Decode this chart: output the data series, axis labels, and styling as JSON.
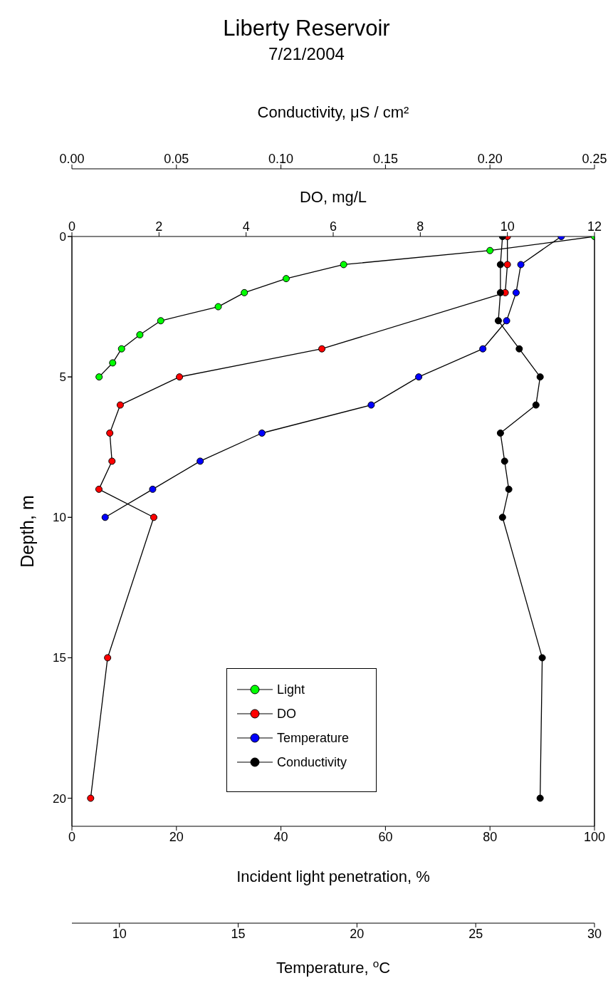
{
  "chart_data": [
    {
      "type": "line",
      "title": "Liberty Reservoir",
      "subtitle": "7/21/2004",
      "xlabel": "Incident light penetration, %",
      "x2label": "DO, mg/L",
      "ylabel": "Depth, m",
      "xlim": [
        0,
        100
      ],
      "xticks": [
        0,
        20,
        40,
        60,
        80,
        100
      ],
      "x2lim": [
        0,
        12
      ],
      "x2ticks": [
        0,
        2,
        4,
        6,
        8,
        10,
        12
      ],
      "ylim": [
        21,
        0
      ],
      "yticks": [
        0,
        5,
        10,
        15,
        20
      ],
      "marker": "circle",
      "line_style": "solid",
      "legend": "bottom",
      "series": [
        {
          "name": "Light",
          "color": "#00ff00",
          "x": [
            100,
            80,
            52,
            41,
            33,
            28,
            17,
            13,
            9.5,
            7.8,
            5.2
          ],
          "values": [
            0,
            0.5,
            1,
            1.5,
            2,
            2.5,
            3,
            3.5,
            4,
            4.5,
            5
          ]
        },
        {
          "name": "DO",
          "color": "#ff0000",
          "axis": "x2",
          "x": [
            10.0,
            10.0,
            9.95,
            5.74,
            2.47,
            1.11,
            0.87,
            0.92,
            0.62,
            1.88,
            0.82,
            0.43
          ],
          "values": [
            0,
            1,
            2,
            4,
            5,
            6,
            7,
            8,
            9,
            10,
            15,
            20
          ]
        }
      ]
    },
    {
      "type": "line",
      "xlabel": "Temperature, $^{o}$C",
      "x2label": "Conductivity, μS / cm²",
      "xlim": [
        8,
        30
      ],
      "xticks": [
        10,
        15,
        20,
        25,
        30
      ],
      "x2lim": [
        0,
        0.25
      ],
      "x2ticks": [
        {
          "value": 0,
          "label": "0.00"
        },
        {
          "value": 0.05,
          "label": "0.05"
        },
        {
          "value": 0.1,
          "label": "0.10"
        },
        {
          "value": 0.15,
          "label": "0.15"
        },
        {
          "value": 0.2,
          "label": "0.20"
        },
        {
          "value": 0.25,
          "label": "0.25"
        }
      ],
      "ylim": [
        21,
        0
      ],
      "yticks": [
        0,
        5,
        10,
        15,
        20
      ],
      "tick_labels": "x",
      "marker": "circle",
      "line_style": "solid",
      "legend": "bottom",
      "series": [
        {
          "name": "Temperature",
          "color": "#0000ff",
          "x": [
            28.6,
            26.9,
            26.7,
            26.3,
            25.3,
            22.6,
            20.6,
            16.0,
            13.4,
            11.4,
            9.4
          ],
          "values": [
            0,
            1,
            2,
            3,
            4,
            5,
            6,
            7,
            8,
            9,
            10
          ]
        },
        {
          "name": "Conductivity",
          "color": "#000000",
          "axis": "x2",
          "x": [
            0.206,
            0.205,
            0.205,
            0.204,
            0.214,
            0.224,
            0.222,
            0.205,
            0.207,
            0.209,
            0.206,
            0.225,
            0.224
          ],
          "values": [
            0,
            1,
            2,
            3,
            4,
            5,
            6,
            7,
            8,
            9,
            10,
            15,
            20
          ]
        }
      ]
    }
  ]
}
